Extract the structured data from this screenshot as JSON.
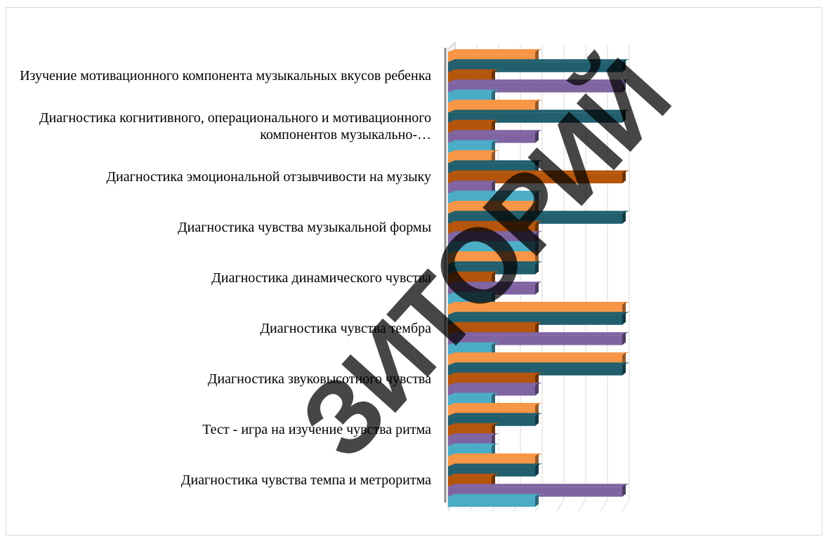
{
  "chart_data": {
    "type": "bar",
    "orientation": "horizontal",
    "style": "3d",
    "categories": [
      "Изучение мотивационного компонента музыкальных вкусов ребенка",
      "Диагностика когнитивного, операционального и мотивационного компонентов музыкально-…",
      "Диагностика эмоциональной отзывчивости на музыку",
      "Диагностика чувства музыкальной формы",
      "Диагностика динамического чувства",
      "Диагностика чувства тембра",
      "Диагностика звуковысотного чувства",
      "Тест - игра на изучение чувства ритма",
      "Диагностика чувства темпа и метроритма"
    ],
    "series": [
      {
        "values": [
          2,
          2,
          1,
          2,
          2,
          4,
          4,
          2,
          2
        ]
      },
      {
        "values": [
          4,
          4,
          2,
          4,
          2,
          4,
          4,
          2,
          2
        ]
      },
      {
        "values": [
          1,
          1,
          4,
          2,
          1,
          2,
          2,
          1,
          1
        ]
      },
      {
        "values": [
          4,
          2,
          1,
          2,
          2,
          4,
          2,
          1,
          4
        ]
      },
      {
        "values": [
          1,
          1,
          2,
          2,
          1,
          1,
          1,
          1,
          2
        ]
      }
    ],
    "xlim": [
      0,
      4
    ],
    "grid": true,
    "legend": "none"
  },
  "colors": {
    "series": [
      "#f79646",
      "#215f6e",
      "#b5540b",
      "#8064a2",
      "#4bacc6"
    ],
    "grid": "#d9d9d9"
  },
  "watermark": "ЗИТОРИЙ"
}
